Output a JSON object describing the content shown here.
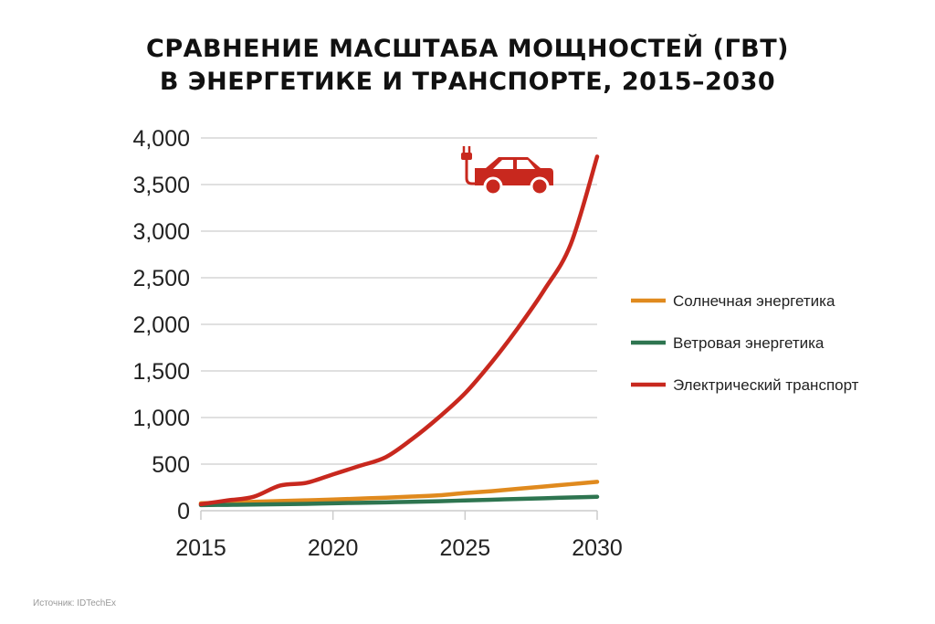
{
  "chart_data": {
    "type": "line",
    "title": "СРАВНЕНИЕ МАСШТАБА МОЩНОСТЕЙ (ГВТ)",
    "subtitle": "В ЭНЕРГЕТИКЕ И ТРАНСПОРТЕ, 2015–2030",
    "xlabel": "",
    "ylabel": "",
    "xlim": [
      2015,
      2030
    ],
    "ylim": [
      0,
      4000
    ],
    "x_ticks": [
      "2015",
      "2020",
      "2025",
      "2030"
    ],
    "y_ticks": [
      "0",
      "500",
      "1,000",
      "1,500",
      "2,000",
      "2,500",
      "3,000",
      "3,500",
      "4,000"
    ],
    "grid": "horizontal",
    "legend_position": "right",
    "x": [
      2015,
      2016,
      2017,
      2018,
      2019,
      2020,
      2021,
      2022,
      2023,
      2024,
      2025,
      2026,
      2027,
      2028,
      2029,
      2030
    ],
    "series": [
      {
        "name": "Солнечная энергетика",
        "color": "#e08a1e",
        "values": [
          80,
          88,
          96,
          104,
          112,
          120,
          130,
          140,
          152,
          165,
          190,
          210,
          235,
          260,
          285,
          310
        ]
      },
      {
        "name": "Ветровая энергетика",
        "color": "#2e7550",
        "values": [
          60,
          63,
          66,
          70,
          74,
          80,
          85,
          90,
          95,
          102,
          110,
          118,
          126,
          134,
          142,
          150
        ]
      },
      {
        "name": "Электрический транспорт",
        "color": "#c8281e",
        "values": [
          70,
          110,
          150,
          270,
          300,
          390,
          480,
          575,
          770,
          1000,
          1260,
          1590,
          1960,
          2370,
          2860,
          3800
        ]
      }
    ],
    "icon": "electric-car-icon",
    "source": "Источник: IDTechEx"
  }
}
